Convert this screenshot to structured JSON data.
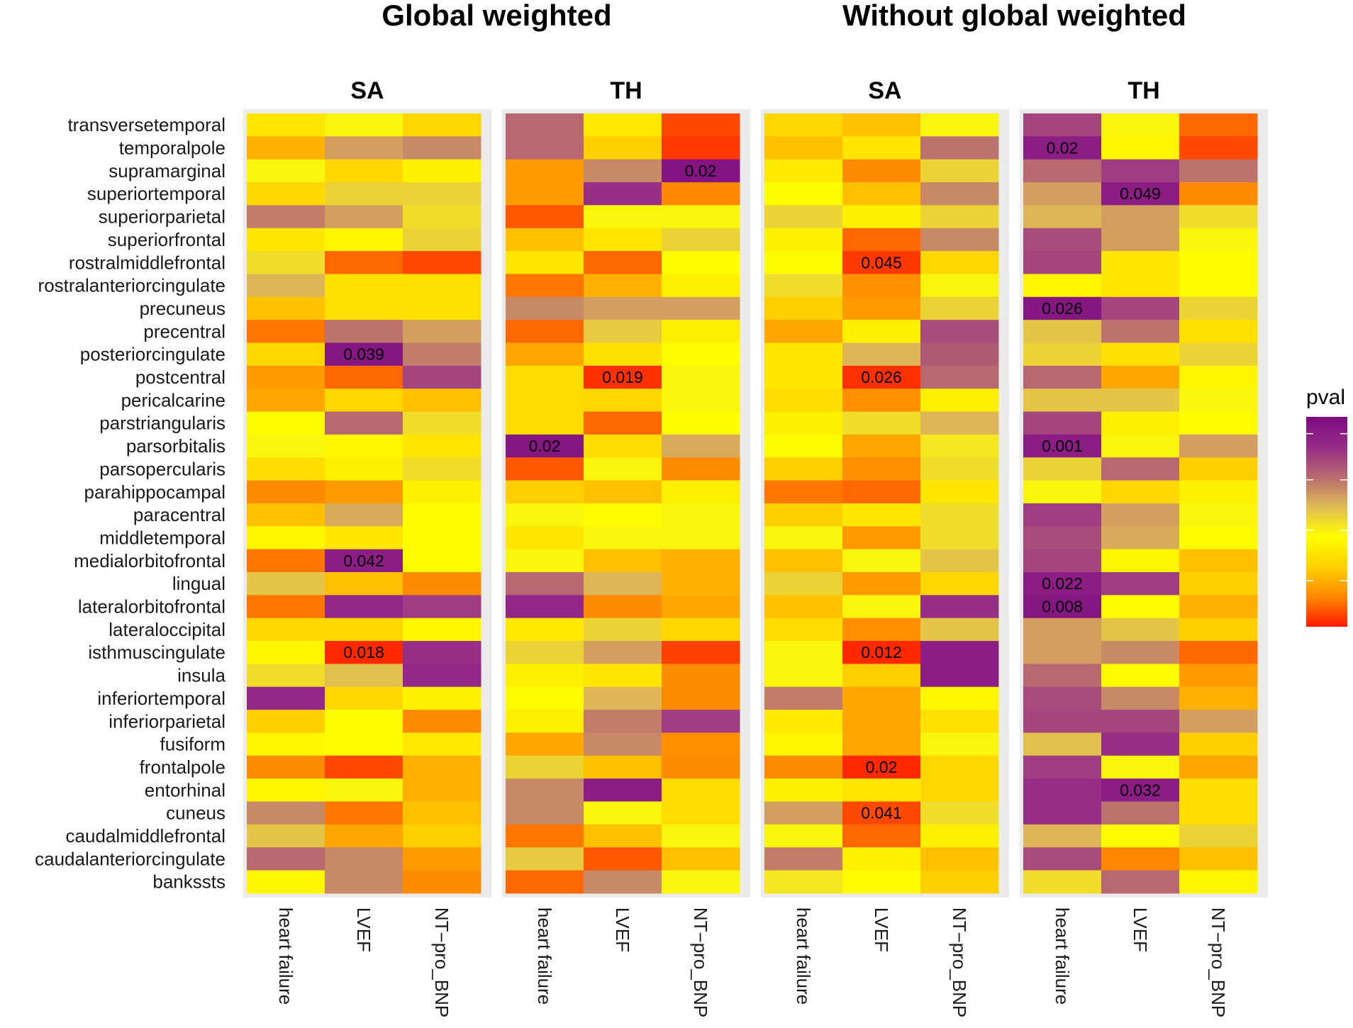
{
  "chart_data": {
    "type": "heatmap",
    "legend": {
      "title": "pval",
      "placement": "right"
    },
    "colorscale": [
      "#ff1a00",
      "#ff8800",
      "#ffd200",
      "#ffff00",
      "#e0bb55",
      "#b86a70",
      "#962c88",
      "#7c0b80"
    ],
    "groups": [
      {
        "title": "Global weighted",
        "subs": [
          "SA",
          "TH"
        ]
      },
      {
        "title": "Without global weighted",
        "subs": [
          "SA",
          "TH"
        ]
      }
    ],
    "rows": [
      "transversetemporal",
      "temporalpole",
      "supramarginal",
      "superiortemporal",
      "superiorparietal",
      "superiorfrontal",
      "rostralmiddlefrontal",
      "rostralanteriorcingulate",
      "precuneus",
      "precentral",
      "posteriorcingulate",
      "postcentral",
      "pericalcarine",
      "parstriangularis",
      "parsorbitalis",
      "parsopercularis",
      "parahippocampal",
      "paracentral",
      "middletemporal",
      "medialorbitofrontal",
      "lingual",
      "lateralorbitofrontal",
      "lateraloccipital",
      "isthmuscingulate",
      "insula",
      "inferiortemporal",
      "inferiorparietal",
      "fusiform",
      "frontalpole",
      "entorhinal",
      "cuneus",
      "caudalmiddlefrontal",
      "caudalanteriorcingulate",
      "bankssts"
    ],
    "columns": [
      "heart failure",
      "LVEF",
      "NT−pro_BNP"
    ],
    "panels": [
      {
        "name": "Global weighted SA",
        "values": [
          [
            0.35,
            0.45,
            0.3
          ],
          [
            0.22,
            0.62,
            0.66
          ],
          [
            0.45,
            0.3,
            0.38
          ],
          [
            0.3,
            0.52,
            0.52
          ],
          [
            0.68,
            0.62,
            0.5
          ],
          [
            0.35,
            0.4,
            0.52
          ],
          [
            0.5,
            0.1,
            0.06
          ],
          [
            0.58,
            0.33,
            0.33
          ],
          [
            0.25,
            0.33,
            0.33
          ],
          [
            0.12,
            0.7,
            0.62
          ],
          [
            0.3,
            0.95,
            0.68
          ],
          [
            0.18,
            0.1,
            0.8
          ],
          [
            0.2,
            0.3,
            0.25
          ],
          [
            0.42,
            0.72,
            0.5
          ],
          [
            0.45,
            0.4,
            0.35
          ],
          [
            0.32,
            0.38,
            0.5
          ],
          [
            0.15,
            0.18,
            0.38
          ],
          [
            0.25,
            0.6,
            0.42
          ],
          [
            0.4,
            0.35,
            0.42
          ],
          [
            0.12,
            0.92,
            0.42
          ],
          [
            0.55,
            0.25,
            0.15
          ],
          [
            0.12,
            0.88,
            0.82
          ],
          [
            0.3,
            0.3,
            0.4
          ],
          [
            0.4,
            0.02,
            0.85
          ],
          [
            0.5,
            0.56,
            0.88
          ],
          [
            0.88,
            0.3,
            0.38
          ],
          [
            0.28,
            0.42,
            0.15
          ],
          [
            0.4,
            0.42,
            0.36
          ],
          [
            0.15,
            0.06,
            0.22
          ],
          [
            0.4,
            0.45,
            0.22
          ],
          [
            0.66,
            0.12,
            0.25
          ],
          [
            0.55,
            0.2,
            0.28
          ],
          [
            0.72,
            0.66,
            0.18
          ],
          [
            0.4,
            0.66,
            0.15
          ]
        ],
        "labels": [
          {
            "row": "posteriorcingulate",
            "col": "LVEF",
            "text": "0.039"
          },
          {
            "row": "medialorbitofrontal",
            "col": "LVEF",
            "text": "0.042"
          },
          {
            "row": "isthmuscingulate",
            "col": "LVEF",
            "text": "0.018"
          }
        ]
      },
      {
        "name": "Global weighted TH",
        "values": [
          [
            0.72,
            0.36,
            0.06
          ],
          [
            0.72,
            0.28,
            0.04
          ],
          [
            0.18,
            0.66,
            0.96
          ],
          [
            0.18,
            0.85,
            0.14
          ],
          [
            0.08,
            0.45,
            0.45
          ],
          [
            0.25,
            0.35,
            0.52
          ],
          [
            0.35,
            0.1,
            0.42
          ],
          [
            0.12,
            0.22,
            0.38
          ],
          [
            0.66,
            0.62,
            0.62
          ],
          [
            0.1,
            0.54,
            0.38
          ],
          [
            0.2,
            0.33,
            0.42
          ],
          [
            0.32,
            0.03,
            0.45
          ],
          [
            0.32,
            0.3,
            0.45
          ],
          [
            0.32,
            0.1,
            0.42
          ],
          [
            0.95,
            0.32,
            0.6
          ],
          [
            0.08,
            0.45,
            0.15
          ],
          [
            0.28,
            0.25,
            0.38
          ],
          [
            0.45,
            0.42,
            0.45
          ],
          [
            0.35,
            0.45,
            0.45
          ],
          [
            0.45,
            0.25,
            0.22
          ],
          [
            0.72,
            0.58,
            0.22
          ],
          [
            0.88,
            0.15,
            0.2
          ],
          [
            0.36,
            0.52,
            0.3
          ],
          [
            0.52,
            0.62,
            0.05
          ],
          [
            0.38,
            0.35,
            0.15
          ],
          [
            0.42,
            0.58,
            0.15
          ],
          [
            0.38,
            0.68,
            0.82
          ],
          [
            0.2,
            0.66,
            0.16
          ],
          [
            0.52,
            0.25,
            0.15
          ],
          [
            0.66,
            0.92,
            0.32
          ],
          [
            0.66,
            0.45,
            0.32
          ],
          [
            0.12,
            0.25,
            0.45
          ],
          [
            0.54,
            0.08,
            0.25
          ],
          [
            0.1,
            0.66,
            0.45
          ]
        ],
        "labels": [
          {
            "row": "supramarginal",
            "col": "NT−pro_BNP",
            "text": "0.02"
          },
          {
            "row": "postcentral",
            "col": "LVEF",
            "text": "0.019"
          },
          {
            "row": "parsorbitalis",
            "col": "heart failure",
            "text": "0.02"
          }
        ]
      },
      {
        "name": "Without global weighted SA",
        "values": [
          [
            0.3,
            0.25,
            0.45
          ],
          [
            0.25,
            0.35,
            0.7
          ],
          [
            0.36,
            0.15,
            0.52
          ],
          [
            0.42,
            0.25,
            0.66
          ],
          [
            0.52,
            0.38,
            0.52
          ],
          [
            0.38,
            0.1,
            0.66
          ],
          [
            0.42,
            0.04,
            0.3
          ],
          [
            0.5,
            0.16,
            0.45
          ],
          [
            0.28,
            0.18,
            0.52
          ],
          [
            0.2,
            0.38,
            0.78
          ],
          [
            0.35,
            0.58,
            0.75
          ],
          [
            0.35,
            0.03,
            0.72
          ],
          [
            0.32,
            0.16,
            0.38
          ],
          [
            0.38,
            0.5,
            0.58
          ],
          [
            0.42,
            0.2,
            0.48
          ],
          [
            0.28,
            0.16,
            0.5
          ],
          [
            0.12,
            0.1,
            0.35
          ],
          [
            0.28,
            0.35,
            0.5
          ],
          [
            0.45,
            0.18,
            0.5
          ],
          [
            0.25,
            0.45,
            0.55
          ],
          [
            0.52,
            0.18,
            0.3
          ],
          [
            0.25,
            0.45,
            0.85
          ],
          [
            0.32,
            0.16,
            0.55
          ],
          [
            0.45,
            0.02,
            0.92
          ],
          [
            0.45,
            0.28,
            0.92
          ],
          [
            0.68,
            0.2,
            0.4
          ],
          [
            0.36,
            0.2,
            0.33
          ],
          [
            0.4,
            0.2,
            0.45
          ],
          [
            0.15,
            0.02,
            0.3
          ],
          [
            0.38,
            0.35,
            0.3
          ],
          [
            0.62,
            0.06,
            0.5
          ],
          [
            0.45,
            0.1,
            0.38
          ],
          [
            0.68,
            0.38,
            0.25
          ],
          [
            0.48,
            0.42,
            0.28
          ]
        ],
        "labels": [
          {
            "row": "rostralmiddlefrontal",
            "col": "LVEF",
            "text": "0.045"
          },
          {
            "row": "postcentral",
            "col": "LVEF",
            "text": "0.026"
          },
          {
            "row": "isthmuscingulate",
            "col": "LVEF",
            "text": "0.012"
          },
          {
            "row": "frontalpole",
            "col": "LVEF",
            "text": "0.02"
          },
          {
            "row": "cuneus",
            "col": "LVEF",
            "text": "0.041"
          }
        ]
      },
      {
        "name": "Without global weighted TH",
        "values": [
          [
            0.8,
            0.45,
            0.1
          ],
          [
            0.92,
            0.4,
            0.06
          ],
          [
            0.72,
            0.82,
            0.7
          ],
          [
            0.62,
            0.92,
            0.15
          ],
          [
            0.58,
            0.62,
            0.5
          ],
          [
            0.78,
            0.62,
            0.45
          ],
          [
            0.8,
            0.35,
            0.42
          ],
          [
            0.4,
            0.35,
            0.42
          ],
          [
            0.95,
            0.8,
            0.52
          ],
          [
            0.55,
            0.7,
            0.33
          ],
          [
            0.52,
            0.33,
            0.52
          ],
          [
            0.72,
            0.2,
            0.4
          ],
          [
            0.55,
            0.55,
            0.45
          ],
          [
            0.8,
            0.38,
            0.42
          ],
          [
            0.92,
            0.45,
            0.62
          ],
          [
            0.52,
            0.72,
            0.28
          ],
          [
            0.45,
            0.3,
            0.38
          ],
          [
            0.82,
            0.62,
            0.45
          ],
          [
            0.78,
            0.6,
            0.42
          ],
          [
            0.8,
            0.4,
            0.25
          ],
          [
            0.92,
            0.82,
            0.28
          ],
          [
            0.95,
            0.42,
            0.22
          ],
          [
            0.62,
            0.55,
            0.28
          ],
          [
            0.62,
            0.66,
            0.1
          ],
          [
            0.72,
            0.42,
            0.18
          ],
          [
            0.78,
            0.66,
            0.22
          ],
          [
            0.8,
            0.8,
            0.62
          ],
          [
            0.56,
            0.85,
            0.28
          ],
          [
            0.82,
            0.45,
            0.2
          ],
          [
            0.85,
            0.92,
            0.32
          ],
          [
            0.85,
            0.7,
            0.32
          ],
          [
            0.58,
            0.42,
            0.52
          ],
          [
            0.78,
            0.14,
            0.25
          ],
          [
            0.5,
            0.72,
            0.4
          ]
        ],
        "labels": [
          {
            "row": "temporalpole",
            "col": "heart failure",
            "text": "0.02"
          },
          {
            "row": "superiortemporal",
            "col": "LVEF",
            "text": "0.049"
          },
          {
            "row": "precuneus",
            "col": "heart failure",
            "text": "0.026"
          },
          {
            "row": "parsorbitalis",
            "col": "heart failure",
            "text": "0.001"
          },
          {
            "row": "lingual",
            "col": "heart failure",
            "text": "0.022"
          },
          {
            "row": "lateralorbitofrontal",
            "col": "heart failure",
            "text": "0.008"
          },
          {
            "row": "entorhinal",
            "col": "LVEF",
            "text": "0.032"
          }
        ]
      }
    ]
  }
}
